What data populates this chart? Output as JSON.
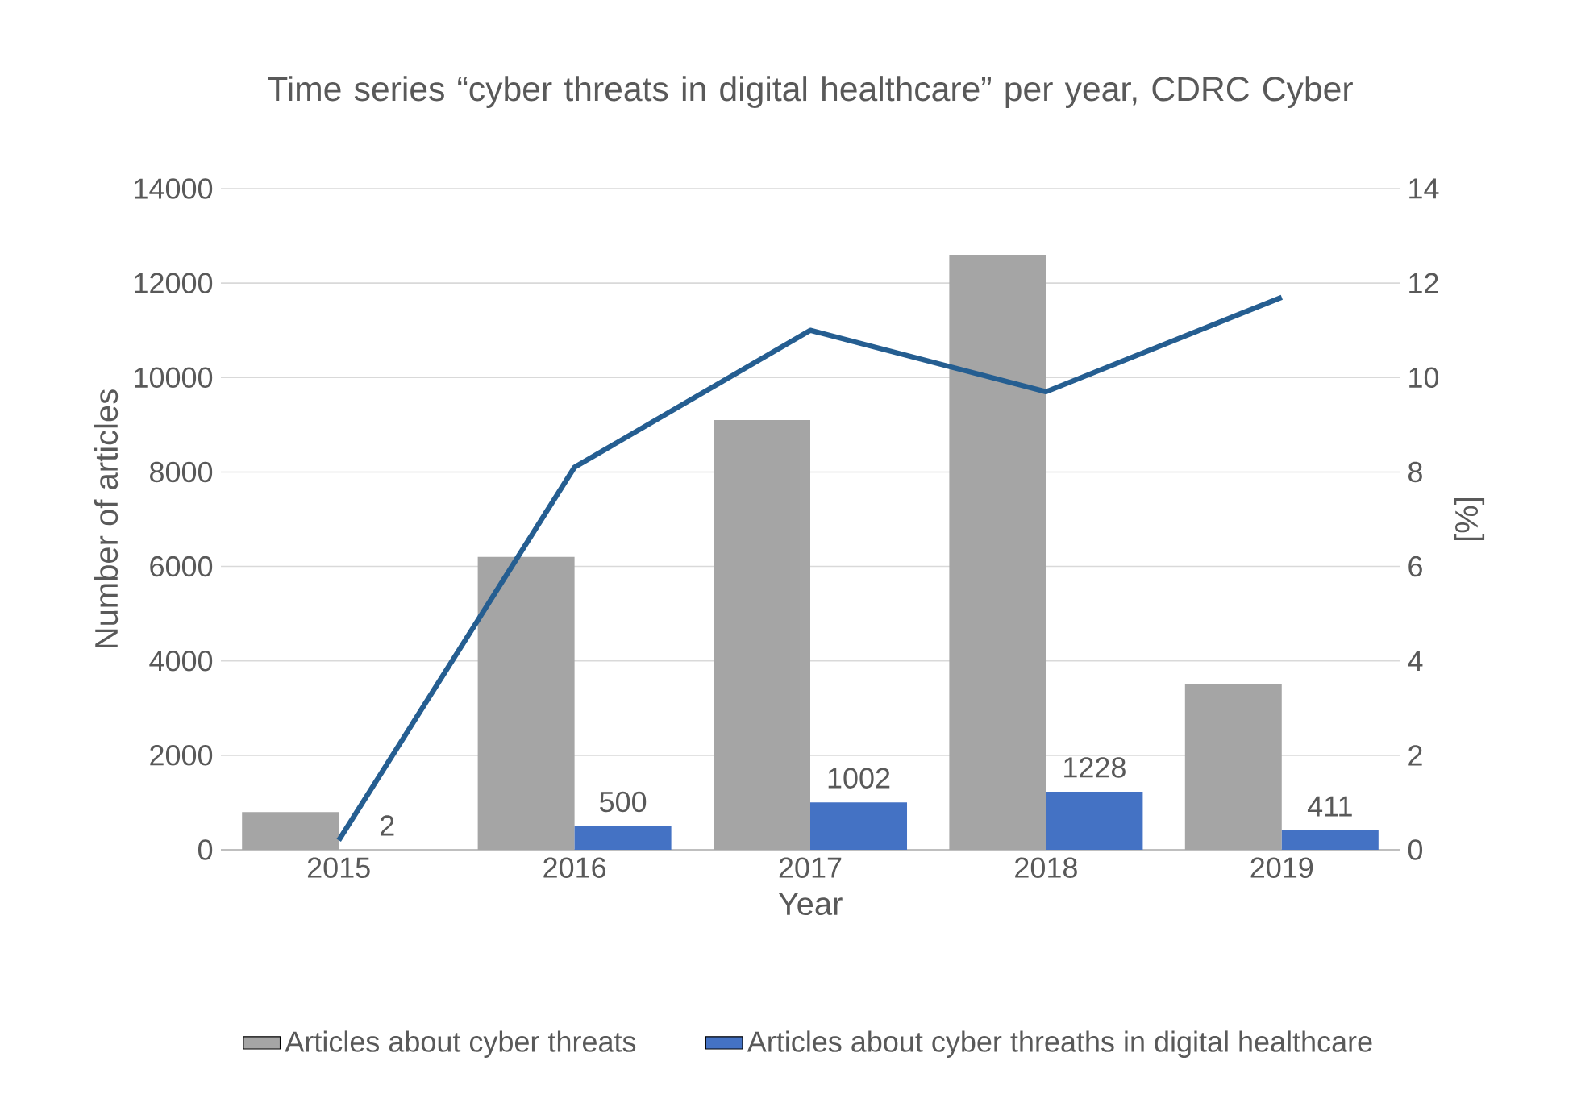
{
  "chart_data": {
    "type": "bar",
    "title": "Time series “cyber threats in digital healthcare” per year, CDRC Cyber",
    "xlabel": "Year",
    "ylabel": "Number of articles",
    "y2label": "[%]",
    "categories": [
      "2015",
      "2016",
      "2017",
      "2018",
      "2019"
    ],
    "series": [
      {
        "name": "Articles about cyber threats",
        "color": "#a5a5a5",
        "values": [
          800,
          6200,
          9100,
          12600,
          3500
        ]
      },
      {
        "name": "Articles about cyber threaths in digital healthcare",
        "color": "#4472c4",
        "values": [
          2,
          500,
          1002,
          1228,
          411
        ],
        "value_labels": [
          "2",
          "500",
          "1002",
          "1228",
          "411"
        ]
      },
      {
        "type": "line",
        "axis": "y2",
        "color": "#255e91",
        "values": [
          0.2,
          8.1,
          11.0,
          9.7,
          11.7
        ],
        "marker": "none"
      }
    ],
    "ylim": [
      0,
      14000
    ],
    "yticks": [
      0,
      2000,
      4000,
      6000,
      8000,
      10000,
      12000,
      14000
    ],
    "y2lim": [
      0,
      14
    ],
    "y2ticks": [
      0,
      2,
      4,
      6,
      8,
      10,
      12,
      14
    ],
    "grid": "y",
    "legend": "bottom"
  }
}
